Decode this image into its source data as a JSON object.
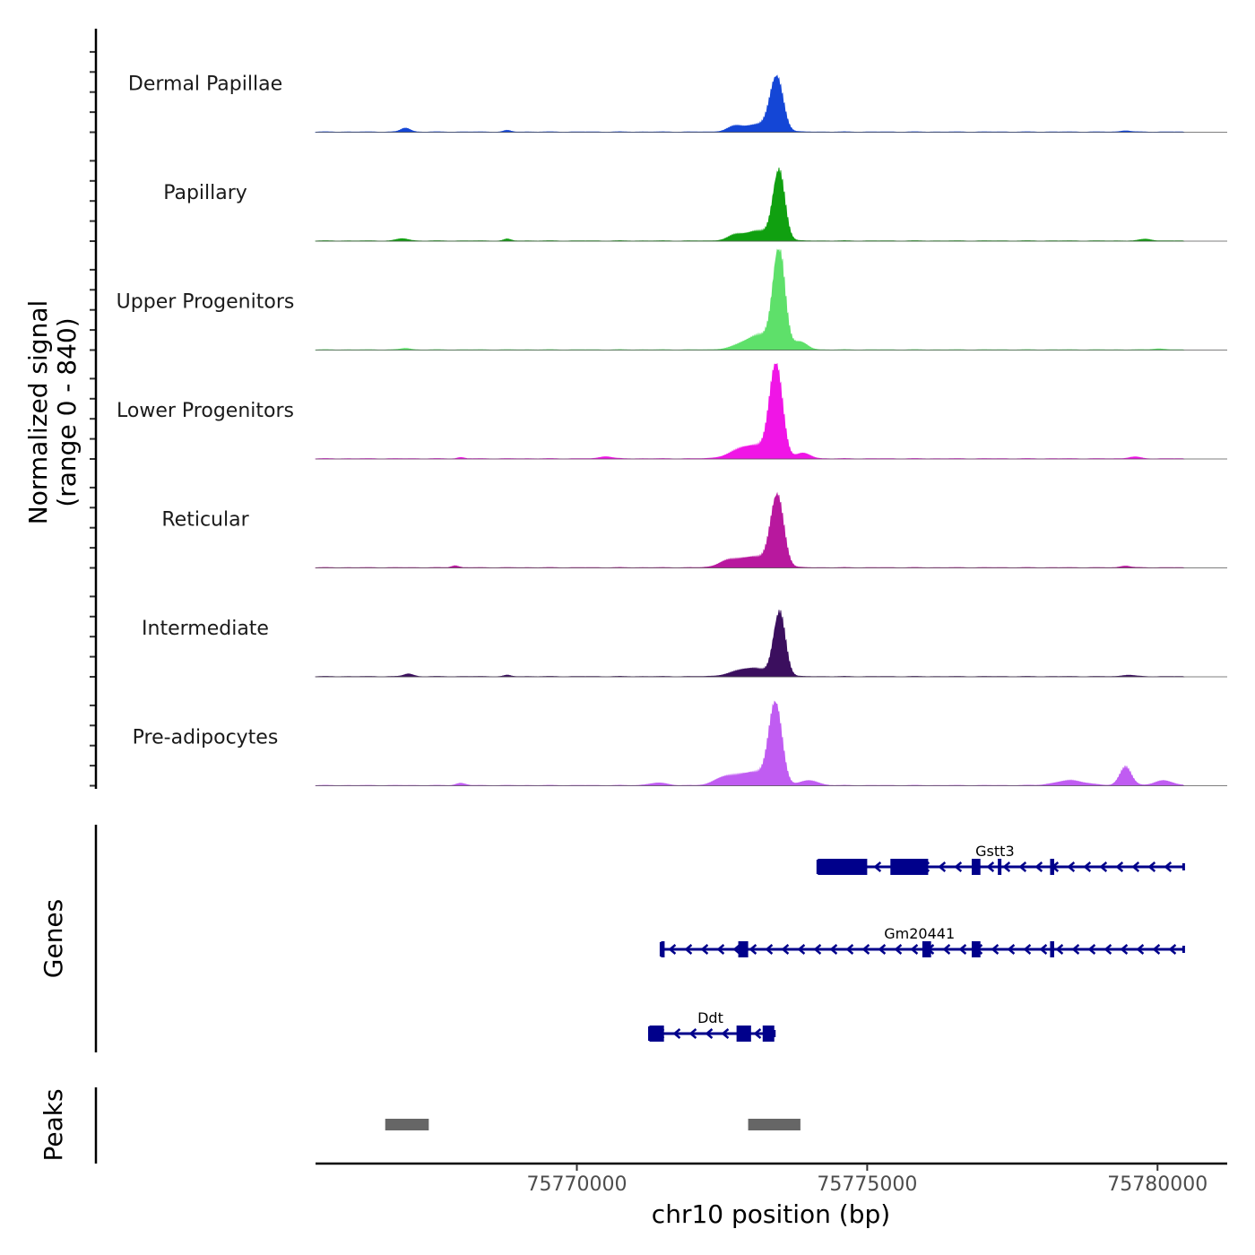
{
  "chart_data": {
    "type": "area",
    "title": "",
    "region": {
      "chrom": "chr10",
      "start": 75765500,
      "end": 75781200
    },
    "xlabel": "chr10 position (bp)",
    "xticks": [
      75770000,
      75775000,
      75780000
    ],
    "xtick_labels": [
      "75770000",
      "75775000",
      "75780000"
    ],
    "ylabel_line1": "Normalized signal",
    "ylabel_line2": "(range 0 - 840)",
    "ylim": [
      0,
      840
    ],
    "genes_label": "Genes",
    "peaks_label": "Peaks",
    "series": [
      {
        "name": "Dermal Papillae",
        "color": "#1446d6",
        "peaks": [
          {
            "pos": 75773440,
            "height": 440,
            "width": 110
          },
          {
            "pos": 75773100,
            "height": 60,
            "width": 260
          },
          {
            "pos": 75772700,
            "height": 30,
            "width": 120
          },
          {
            "pos": 75767050,
            "height": 32,
            "width": 80
          },
          {
            "pos": 75768800,
            "height": 12,
            "width": 60
          },
          {
            "pos": 75779450,
            "height": 10,
            "width": 80
          }
        ]
      },
      {
        "name": "Papillary",
        "color": "#10a010",
        "peaks": [
          {
            "pos": 75773480,
            "height": 560,
            "width": 100
          },
          {
            "pos": 75773100,
            "height": 80,
            "width": 260
          },
          {
            "pos": 75772700,
            "height": 25,
            "width": 120
          },
          {
            "pos": 75767000,
            "height": 18,
            "width": 100
          },
          {
            "pos": 75768800,
            "height": 14,
            "width": 60
          },
          {
            "pos": 75779800,
            "height": 14,
            "width": 100
          }
        ]
      },
      {
        "name": "Upper Progenitors",
        "color": "#5ee06a",
        "peaks": [
          {
            "pos": 75773480,
            "height": 800,
            "width": 100
          },
          {
            "pos": 75773150,
            "height": 120,
            "width": 280
          },
          {
            "pos": 75773850,
            "height": 60,
            "width": 120
          },
          {
            "pos": 75767050,
            "height": 12,
            "width": 80
          },
          {
            "pos": 75780000,
            "height": 8,
            "width": 100
          }
        ]
      },
      {
        "name": "Lower Progenitors",
        "color": "#f015e6",
        "peaks": [
          {
            "pos": 75773430,
            "height": 760,
            "width": 110
          },
          {
            "pos": 75773000,
            "height": 110,
            "width": 280
          },
          {
            "pos": 75773900,
            "height": 45,
            "width": 120
          },
          {
            "pos": 75770500,
            "height": 18,
            "width": 100
          },
          {
            "pos": 75768000,
            "height": 10,
            "width": 60
          },
          {
            "pos": 75779600,
            "height": 14,
            "width": 100
          }
        ]
      },
      {
        "name": "Reticular",
        "color": "#b8189e",
        "peaks": [
          {
            "pos": 75773450,
            "height": 580,
            "width": 110
          },
          {
            "pos": 75773000,
            "height": 90,
            "width": 300
          },
          {
            "pos": 75772550,
            "height": 30,
            "width": 120
          },
          {
            "pos": 75767900,
            "height": 16,
            "width": 60
          },
          {
            "pos": 75779450,
            "height": 14,
            "width": 80
          }
        ]
      },
      {
        "name": "Intermediate",
        "color": "#3b0f5e",
        "peaks": [
          {
            "pos": 75773490,
            "height": 520,
            "width": 100
          },
          {
            "pos": 75773000,
            "height": 70,
            "width": 280
          },
          {
            "pos": 75767100,
            "height": 22,
            "width": 80
          },
          {
            "pos": 75768800,
            "height": 10,
            "width": 60
          },
          {
            "pos": 75779500,
            "height": 12,
            "width": 100
          }
        ]
      },
      {
        "name": "Pre-adipocytes",
        "color": "#c05cf2",
        "peaks": [
          {
            "pos": 75773420,
            "height": 660,
            "width": 110
          },
          {
            "pos": 75773000,
            "height": 110,
            "width": 280
          },
          {
            "pos": 75772500,
            "height": 50,
            "width": 150
          },
          {
            "pos": 75774000,
            "height": 40,
            "width": 150
          },
          {
            "pos": 75779450,
            "height": 150,
            "width": 100
          },
          {
            "pos": 75778500,
            "height": 40,
            "width": 250
          },
          {
            "pos": 75780100,
            "height": 40,
            "width": 150
          },
          {
            "pos": 75771400,
            "height": 20,
            "width": 150
          },
          {
            "pos": 75768000,
            "height": 18,
            "width": 80
          }
        ]
      }
    ],
    "genes": [
      {
        "name": "Gstt3",
        "strand": "-",
        "color": "#00008b",
        "start": 75774150,
        "end": 75780450,
        "label_pos": 75777200,
        "exons": [
          [
            75774150,
            75775000
          ],
          [
            75775400,
            75776050
          ],
          [
            75776800,
            75776950
          ],
          [
            75777250,
            75777300
          ],
          [
            75778150,
            75778220
          ]
        ]
      },
      {
        "name": "Gm20441",
        "strand": "-",
        "color": "#00008b",
        "start": 75771450,
        "end": 75780450,
        "label_pos": 75775900,
        "exons": [
          [
            75771450,
            75771500
          ],
          [
            75772780,
            75772950
          ],
          [
            75775950,
            75776100
          ],
          [
            75776800,
            75776950
          ],
          [
            75778150,
            75778220
          ]
        ]
      },
      {
        "name": "Ddt",
        "strand": "-",
        "color": "#00008b",
        "start": 75771250,
        "end": 75773400,
        "label_pos": 75772300,
        "exons": [
          [
            75771250,
            75771500
          ],
          [
            75772750,
            75773000
          ],
          [
            75773200,
            75773400
          ]
        ]
      }
    ],
    "peaks_regions": [
      {
        "start": 75766700,
        "end": 75767450
      },
      {
        "start": 75772950,
        "end": 75773850
      }
    ]
  }
}
